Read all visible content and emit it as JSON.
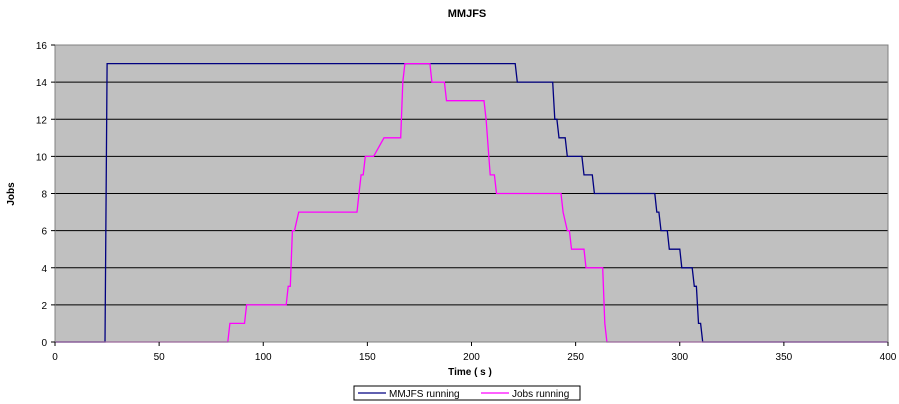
{
  "chart_data": {
    "type": "line",
    "title": "MMJFS",
    "xlabel": "Time ( s )",
    "ylabel": "Jobs",
    "xlim": [
      0,
      400
    ],
    "ylim": [
      0,
      16
    ],
    "x_ticks": [
      "0",
      "50",
      "100",
      "150",
      "200",
      "250",
      "300",
      "350",
      "400"
    ],
    "y_ticks": [
      "0",
      "2",
      "4",
      "6",
      "8",
      "10",
      "12",
      "14",
      "16"
    ],
    "grid": true,
    "legend_position": "bottom",
    "background_color": "#c0c0c0",
    "series": [
      {
        "name": "MMJFS running",
        "color": "#000080",
        "points": [
          [
            0,
            0
          ],
          [
            24,
            0
          ],
          [
            25,
            15
          ],
          [
            221,
            15
          ],
          [
            222,
            14
          ],
          [
            239,
            14
          ],
          [
            240,
            12
          ],
          [
            241,
            12
          ],
          [
            242,
            11
          ],
          [
            245,
            11
          ],
          [
            246,
            10
          ],
          [
            253,
            10
          ],
          [
            254,
            9
          ],
          [
            258,
            9
          ],
          [
            259,
            8
          ],
          [
            288,
            8
          ],
          [
            289,
            7
          ],
          [
            290,
            7
          ],
          [
            291,
            6
          ],
          [
            294,
            6
          ],
          [
            295,
            5
          ],
          [
            300,
            5
          ],
          [
            301,
            4
          ],
          [
            306,
            4
          ],
          [
            307,
            3
          ],
          [
            308,
            3
          ],
          [
            309,
            1
          ],
          [
            310,
            1
          ],
          [
            311,
            0
          ],
          [
            400,
            0
          ]
        ]
      },
      {
        "name": "Jobs running",
        "color": "#ff00ff",
        "points": [
          [
            0,
            0
          ],
          [
            83,
            0
          ],
          [
            84,
            1
          ],
          [
            91,
            1
          ],
          [
            92,
            2
          ],
          [
            111,
            2
          ],
          [
            112,
            3
          ],
          [
            113,
            3
          ],
          [
            114,
            6
          ],
          [
            115,
            6
          ],
          [
            116,
            6.5
          ],
          [
            117,
            7
          ],
          [
            145,
            7
          ],
          [
            146,
            8
          ],
          [
            147,
            9
          ],
          [
            148,
            9
          ],
          [
            149,
            10
          ],
          [
            152,
            10
          ],
          [
            153,
            10
          ],
          [
            158,
            11
          ],
          [
            166,
            11
          ],
          [
            167,
            14
          ],
          [
            168,
            15
          ],
          [
            180,
            15
          ],
          [
            181,
            14
          ],
          [
            187,
            14
          ],
          [
            188,
            13
          ],
          [
            206,
            13
          ],
          [
            207,
            12
          ],
          [
            209,
            9
          ],
          [
            211,
            9
          ],
          [
            212,
            8
          ],
          [
            243,
            8
          ],
          [
            244,
            7
          ],
          [
            246,
            6
          ],
          [
            247,
            6
          ],
          [
            248,
            5
          ],
          [
            254,
            5
          ],
          [
            255,
            4
          ],
          [
            263,
            4
          ],
          [
            264,
            1
          ],
          [
            265,
            0
          ],
          [
            400,
            0
          ]
        ]
      }
    ]
  }
}
